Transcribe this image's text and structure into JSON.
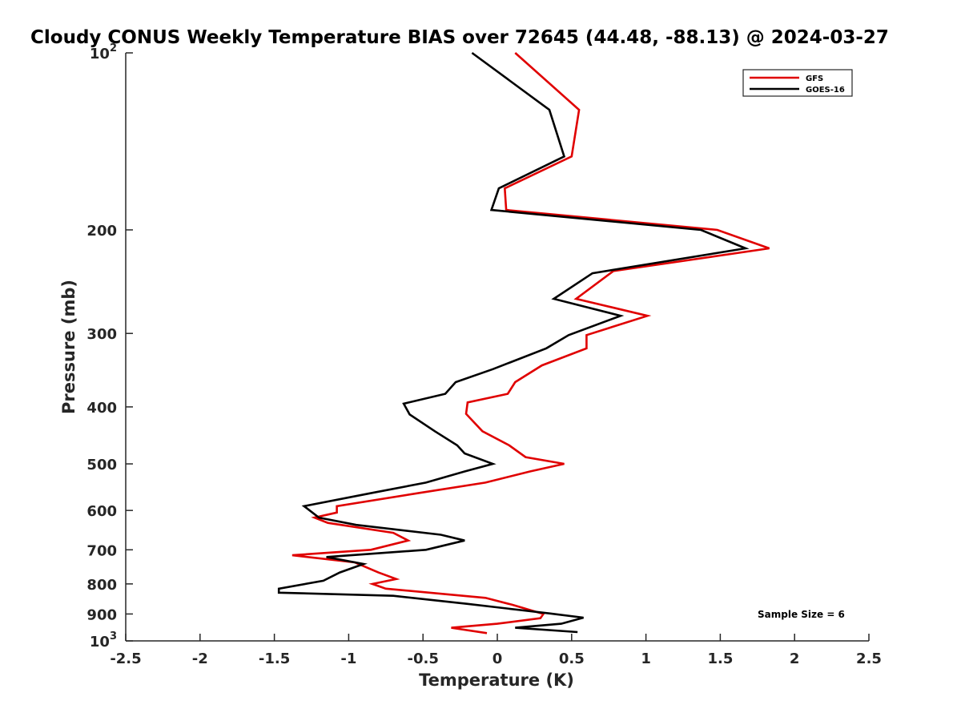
{
  "chart_data": {
    "type": "line",
    "title": "Cloudy CONUS Weekly Temperature BIAS over 72645 (44.48, -88.13) @ 2024-03-27",
    "xlabel": "Temperature (K)",
    "ylabel": "Pressure (mb)",
    "xlim": [
      -2.5,
      2.5
    ],
    "ylim": [
      100,
      1000
    ],
    "y_scale": "log",
    "y_reversed": true,
    "grid": false,
    "legend_position": "top-right",
    "x_ticks": [
      "-2.5",
      "-2",
      "-1.5",
      "-1",
      "-0.5",
      "0",
      "0.5",
      "1",
      "1.5",
      "2",
      "2.5"
    ],
    "x_tick_values": [
      -2.5,
      -2,
      -1.5,
      -1,
      -0.5,
      0,
      0.5,
      1,
      1.5,
      2,
      2.5
    ],
    "y_ticks": [
      {
        "value": 100,
        "label": "10",
        "sup": "2"
      },
      {
        "value": 200,
        "label": "200",
        "sup": ""
      },
      {
        "value": 300,
        "label": "300",
        "sup": ""
      },
      {
        "value": 400,
        "label": "400",
        "sup": ""
      },
      {
        "value": 500,
        "label": "500",
        "sup": ""
      },
      {
        "value": 600,
        "label": "600",
        "sup": ""
      },
      {
        "value": 700,
        "label": "700",
        "sup": ""
      },
      {
        "value": 800,
        "label": "800",
        "sup": ""
      },
      {
        "value": 900,
        "label": "900",
        "sup": ""
      },
      {
        "value": 1000,
        "label": "10",
        "sup": "3"
      }
    ],
    "annotation": "Sample Size = 6",
    "series": [
      {
        "name": "GFS",
        "color": "#e00000",
        "points": [
          [
            0.12,
            100
          ],
          [
            0.55,
            125
          ],
          [
            0.5,
            150
          ],
          [
            0.05,
            170
          ],
          [
            0.06,
            185
          ],
          [
            1.48,
            200
          ],
          [
            1.83,
            215
          ],
          [
            0.78,
            235
          ],
          [
            0.53,
            262
          ],
          [
            1.01,
            280
          ],
          [
            0.6,
            302
          ],
          [
            0.6,
            318
          ],
          [
            0.3,
            340
          ],
          [
            0.12,
            363
          ],
          [
            0.07,
            380
          ],
          [
            -0.2,
            393
          ],
          [
            -0.21,
            411
          ],
          [
            -0.1,
            440
          ],
          [
            0.08,
            465
          ],
          [
            0.19,
            487
          ],
          [
            0.45,
            500
          ],
          [
            0.22,
            515
          ],
          [
            -0.08,
            538
          ],
          [
            -0.52,
            560
          ],
          [
            -1.08,
            590
          ],
          [
            -1.08,
            605
          ],
          [
            -1.23,
            617
          ],
          [
            -1.14,
            630
          ],
          [
            -0.7,
            655
          ],
          [
            -0.6,
            675
          ],
          [
            -0.85,
            700
          ],
          [
            -1.38,
            715
          ],
          [
            -0.96,
            735
          ],
          [
            -0.8,
            765
          ],
          [
            -0.68,
            785
          ],
          [
            -0.84,
            800
          ],
          [
            -0.75,
            815
          ],
          [
            -0.08,
            845
          ],
          [
            0.1,
            868
          ],
          [
            0.31,
            900
          ],
          [
            0.29,
            915
          ],
          [
            0.0,
            935
          ],
          [
            -0.31,
            950
          ],
          [
            -0.07,
            970
          ]
        ]
      },
      {
        "name": "GOES-16",
        "color": "#000000",
        "points": [
          [
            -0.17,
            100
          ],
          [
            0.35,
            125
          ],
          [
            0.45,
            150
          ],
          [
            0.01,
            170
          ],
          [
            -0.04,
            185
          ],
          [
            1.37,
            200
          ],
          [
            1.67,
            215
          ],
          [
            0.64,
            237
          ],
          [
            0.38,
            262
          ],
          [
            0.83,
            280
          ],
          [
            0.48,
            302
          ],
          [
            0.33,
            318
          ],
          [
            -0.03,
            345
          ],
          [
            -0.28,
            363
          ],
          [
            -0.35,
            380
          ],
          [
            -0.63,
            395
          ],
          [
            -0.59,
            412
          ],
          [
            -0.42,
            440
          ],
          [
            -0.27,
            465
          ],
          [
            -0.22,
            480
          ],
          [
            -0.03,
            500
          ],
          [
            -0.22,
            515
          ],
          [
            -0.48,
            538
          ],
          [
            -0.84,
            560
          ],
          [
            -1.3,
            590
          ],
          [
            -1.2,
            617
          ],
          [
            -0.95,
            635
          ],
          [
            -0.38,
            660
          ],
          [
            -0.22,
            675
          ],
          [
            -0.48,
            700
          ],
          [
            -1.15,
            720
          ],
          [
            -0.9,
            740
          ],
          [
            -1.06,
            765
          ],
          [
            -1.17,
            790
          ],
          [
            -1.47,
            815
          ],
          [
            -1.47,
            828
          ],
          [
            -0.7,
            838
          ],
          [
            -0.2,
            865
          ],
          [
            0.35,
            898
          ],
          [
            0.58,
            913
          ],
          [
            0.43,
            935
          ],
          [
            0.12,
            950
          ],
          [
            0.54,
            966
          ]
        ]
      }
    ]
  }
}
